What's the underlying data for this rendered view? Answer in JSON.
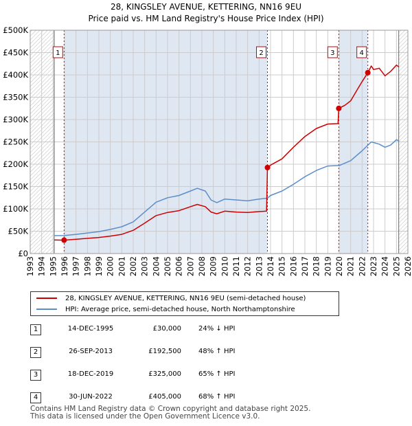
{
  "chart_data": {
    "type": "line",
    "title": "28, KINGSLEY AVENUE, KETTERING, NN16 9EU",
    "subtitle": "Price paid vs. HM Land Registry's House Price Index (HPI)",
    "xlim": [
      1993,
      2026
    ],
    "ylim": [
      0,
      500000
    ],
    "x_ticks": [
      "1993",
      "1994",
      "1995",
      "1996",
      "1997",
      "1998",
      "1999",
      "2000",
      "2001",
      "2002",
      "2003",
      "2004",
      "2005",
      "2006",
      "2007",
      "2008",
      "2009",
      "2010",
      "2011",
      "2012",
      "2013",
      "2014",
      "2015",
      "2016",
      "2017",
      "2018",
      "2019",
      "2020",
      "2021",
      "2022",
      "2023",
      "2024",
      "2025",
      "2026"
    ],
    "y_ticks": [
      {
        "value": 0,
        "label": "£0"
      },
      {
        "value": 50000,
        "label": "£50K"
      },
      {
        "value": 100000,
        "label": "£100K"
      },
      {
        "value": 150000,
        "label": "£150K"
      },
      {
        "value": 200000,
        "label": "£200K"
      },
      {
        "value": 250000,
        "label": "£250K"
      },
      {
        "value": 300000,
        "label": "£300K"
      },
      {
        "value": 350000,
        "label": "£350K"
      },
      {
        "value": 400000,
        "label": "£400K"
      },
      {
        "value": 450000,
        "label": "£450K"
      },
      {
        "value": 500000,
        "label": "£500K"
      }
    ],
    "hatch_ranges": [
      [
        1993,
        1995.1
      ],
      [
        2025.2,
        2026
      ]
    ],
    "shaded_ranges": [
      [
        1995.96,
        2013.73
      ],
      [
        2019.96,
        2022.5
      ]
    ],
    "series": [
      {
        "name": "28, KINGSLEY AVENUE, KETTERING, NN16 9EU (semi-detached house)",
        "color": "#cc0000",
        "points": [
          [
            1995.1,
            30500
          ],
          [
            1995.5,
            30200
          ],
          [
            1995.96,
            30000
          ],
          [
            1997,
            32000
          ],
          [
            1998,
            34000
          ],
          [
            1999,
            36000
          ],
          [
            2000,
            39000
          ],
          [
            2001,
            43000
          ],
          [
            2002,
            52000
          ],
          [
            2003,
            68000
          ],
          [
            2004,
            85000
          ],
          [
            2005,
            92000
          ],
          [
            2006,
            96000
          ],
          [
            2007,
            105000
          ],
          [
            2007.6,
            110000
          ],
          [
            2008.3,
            105000
          ],
          [
            2008.8,
            93000
          ],
          [
            2009.3,
            89000
          ],
          [
            2010,
            95000
          ],
          [
            2011,
            93000
          ],
          [
            2012,
            92000
          ],
          [
            2013,
            94000
          ],
          [
            2013.65,
            95000
          ],
          [
            2013.73,
            192500
          ],
          [
            2014,
            198000
          ],
          [
            2015,
            212000
          ],
          [
            2016,
            238000
          ],
          [
            2017,
            262000
          ],
          [
            2018,
            280000
          ],
          [
            2019,
            290000
          ],
          [
            2019.9,
            291000
          ],
          [
            2019.96,
            325000
          ],
          [
            2020.5,
            332000
          ],
          [
            2021,
            342000
          ],
          [
            2021.6,
            368000
          ],
          [
            2022,
            385000
          ],
          [
            2022.5,
            405000
          ],
          [
            2022.8,
            420000
          ],
          [
            2023,
            412000
          ],
          [
            2023.5,
            415000
          ],
          [
            2024,
            398000
          ],
          [
            2024.5,
            408000
          ],
          [
            2025,
            422000
          ],
          [
            2025.2,
            418000
          ]
        ]
      },
      {
        "name": "HPI: Average price, semi-detached house, North Northamptonshire",
        "color": "#5b8ec9",
        "points": [
          [
            1995.1,
            40000
          ],
          [
            1996,
            40500
          ],
          [
            1997,
            43000
          ],
          [
            1998,
            46000
          ],
          [
            1999,
            49000
          ],
          [
            2000,
            54000
          ],
          [
            2001,
            60000
          ],
          [
            2002,
            71000
          ],
          [
            2003,
            93000
          ],
          [
            2004,
            115000
          ],
          [
            2005,
            125000
          ],
          [
            2006,
            130000
          ],
          [
            2007,
            140000
          ],
          [
            2007.6,
            146000
          ],
          [
            2008.3,
            140000
          ],
          [
            2008.8,
            120000
          ],
          [
            2009.3,
            114000
          ],
          [
            2010,
            122000
          ],
          [
            2011,
            120000
          ],
          [
            2012,
            118000
          ],
          [
            2013,
            122000
          ],
          [
            2013.73,
            124000
          ],
          [
            2014,
            130000
          ],
          [
            2015,
            140000
          ],
          [
            2016,
            155000
          ],
          [
            2017,
            172000
          ],
          [
            2018,
            186000
          ],
          [
            2019,
            196000
          ],
          [
            2020,
            197000
          ],
          [
            2021,
            208000
          ],
          [
            2022,
            230000
          ],
          [
            2022.8,
            250000
          ],
          [
            2023.5,
            245000
          ],
          [
            2024,
            238000
          ],
          [
            2024.5,
            243000
          ],
          [
            2025,
            255000
          ],
          [
            2025.2,
            252000
          ]
        ]
      }
    ],
    "sales": [
      {
        "marker": "1",
        "year": 1995.96,
        "price": 30000
      },
      {
        "marker": "2",
        "year": 2013.73,
        "price": 192500
      },
      {
        "marker": "3",
        "year": 2019.96,
        "price": 325000
      },
      {
        "marker": "4",
        "year": 2022.5,
        "price": 405000
      }
    ]
  },
  "legend": {
    "property_label": "28, KINGSLEY AVENUE, KETTERING, NN16 9EU (semi-detached house)",
    "property_color": "#cc0000",
    "hpi_label": "HPI: Average price, semi-detached house, North Northamptonshire",
    "hpi_color": "#5b8ec9"
  },
  "sales_table": [
    {
      "num": "1",
      "date": "14-DEC-1995",
      "price": "£30,000",
      "hpi": "24% ↓ HPI"
    },
    {
      "num": "2",
      "date": "26-SEP-2013",
      "price": "£192,500",
      "hpi": "48% ↑ HPI"
    },
    {
      "num": "3",
      "date": "18-DEC-2019",
      "price": "£325,000",
      "hpi": "65% ↑ HPI"
    },
    {
      "num": "4",
      "date": "30-JUN-2022",
      "price": "£405,000",
      "hpi": "68% ↑ HPI"
    }
  ],
  "footer": {
    "line1": "Contains HM Land Registry data © Crown copyright and database right 2025.",
    "line2": "This data is licensed under the Open Government Licence v3.0."
  }
}
